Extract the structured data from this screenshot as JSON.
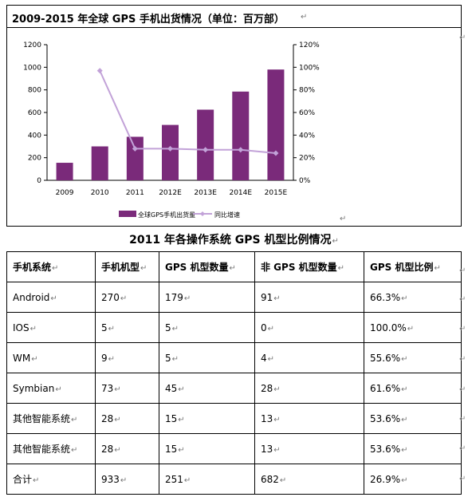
{
  "chart_section": {
    "title": "2009-2015 年全球 GPS 手机出货情况（单位：百万部）"
  },
  "chart_data": {
    "type": "bar",
    "categories": [
      "2009",
      "2010",
      "2011",
      "2012E",
      "2013E",
      "2014E",
      "2015E"
    ],
    "series": [
      {
        "name": "全球GPS手机出货量",
        "kind": "bar",
        "axis": "left",
        "values": [
          155,
          300,
          385,
          490,
          625,
          785,
          980
        ]
      },
      {
        "name": "同比增速",
        "kind": "line",
        "axis": "right",
        "values": [
          null,
          97,
          28,
          28,
          27,
          27,
          24
        ]
      }
    ],
    "y_left": {
      "min": 0,
      "max": 1200,
      "ticks": [
        "0",
        "200",
        "400",
        "600",
        "800",
        "1000",
        "1200"
      ]
    },
    "y_right": {
      "min": 0,
      "max": 120,
      "ticks": [
        "0%",
        "20%",
        "40%",
        "60%",
        "80%",
        "100%",
        "120%"
      ]
    },
    "colors": {
      "bar": "#7a2a7a",
      "line": "#c2a2d8"
    },
    "legend_position": "bottom"
  },
  "table_section": {
    "title": "2011 年各操作系统 GPS 机型比例情况",
    "columns": [
      "手机系统",
      "手机机型",
      "GPS 机型数量",
      "非 GPS 机型数量",
      "GPS 机型比例"
    ],
    "rows": [
      [
        "Android",
        "270",
        "179",
        "91",
        "66.3%"
      ],
      [
        "IOS",
        "5",
        "5",
        "0",
        "100.0%"
      ],
      [
        "WM",
        "9",
        "5",
        "4",
        "55.6%"
      ],
      [
        "Symbian",
        "73",
        "45",
        "28",
        "61.6%"
      ],
      [
        "其他智能系统",
        "28",
        "15",
        "13",
        "53.6%"
      ],
      [
        "其他智能系统",
        "28",
        "15",
        "13",
        "53.6%"
      ],
      [
        "合计",
        "933",
        "251",
        "682",
        "26.9%"
      ]
    ]
  },
  "marks": {
    "return": "↵"
  }
}
